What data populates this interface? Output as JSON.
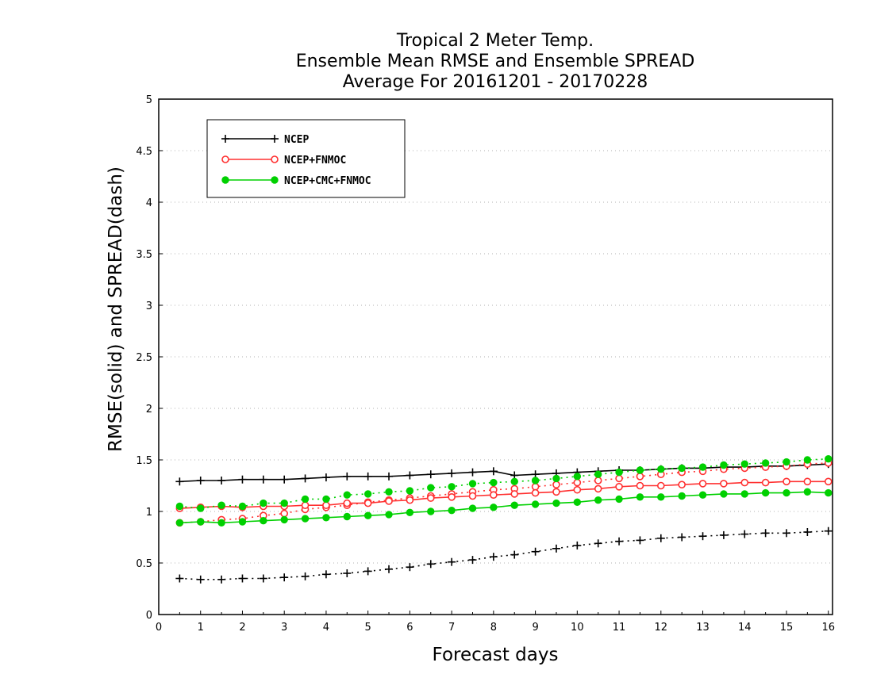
{
  "chart_data": {
    "type": "line",
    "title": [
      "Tropical 2 Meter Temp.",
      "Ensemble Mean RMSE and Ensemble SPREAD",
      "Average For 20161201 - 20170228"
    ],
    "xlabel": "Forecast days",
    "ylabel": "RMSE(solid) and SPREAD(dash)",
    "xlim": [
      0,
      16.1
    ],
    "ylim": [
      0,
      5
    ],
    "xticks": [
      "0",
      "1",
      "2",
      "3",
      "4",
      "5",
      "6",
      "7",
      "8",
      "9",
      "10",
      "11",
      "12",
      "13",
      "14",
      "15",
      "16"
    ],
    "yticks": [
      "0",
      "0.5",
      "1",
      "1.5",
      "2",
      "2.5",
      "3",
      "3.5",
      "4",
      "4.5",
      "5"
    ],
    "grid": "horizontal dotted",
    "legend_position": "top-left",
    "x": [
      0.5,
      1,
      1.5,
      2,
      2.5,
      3,
      3.5,
      4,
      4.5,
      5,
      5.5,
      6,
      6.5,
      7,
      7.5,
      8,
      8.5,
      9,
      9.5,
      10,
      10.5,
      11,
      11.5,
      12,
      12.5,
      13,
      13.5,
      14,
      14.5,
      15,
      15.5,
      16
    ],
    "series": [
      {
        "name": "NCEP",
        "color": "#000000",
        "marker": "plus",
        "rmse": [
          1.29,
          1.3,
          1.3,
          1.31,
          1.31,
          1.31,
          1.32,
          1.33,
          1.34,
          1.34,
          1.34,
          1.35,
          1.36,
          1.37,
          1.38,
          1.39,
          1.35,
          1.36,
          1.37,
          1.38,
          1.39,
          1.4,
          1.4,
          1.41,
          1.42,
          1.42,
          1.43,
          1.43,
          1.44,
          1.44,
          1.45,
          1.46
        ],
        "spread": [
          0.35,
          0.34,
          0.34,
          0.35,
          0.35,
          0.36,
          0.37,
          0.39,
          0.4,
          0.42,
          0.44,
          0.46,
          0.49,
          0.51,
          0.53,
          0.56,
          0.58,
          0.61,
          0.64,
          0.67,
          0.69,
          0.71,
          0.72,
          0.74,
          0.75,
          0.76,
          0.77,
          0.78,
          0.79,
          0.79,
          0.8,
          0.81
        ]
      },
      {
        "name": "NCEP+FNMOC",
        "color": "#ff3030",
        "marker": "open-circle",
        "rmse": [
          1.03,
          1.04,
          1.05,
          1.04,
          1.05,
          1.05,
          1.06,
          1.06,
          1.08,
          1.08,
          1.1,
          1.11,
          1.13,
          1.14,
          1.15,
          1.16,
          1.17,
          1.18,
          1.19,
          1.21,
          1.22,
          1.24,
          1.25,
          1.25,
          1.26,
          1.27,
          1.27,
          1.28,
          1.28,
          1.29,
          1.29,
          1.29
        ],
        "spread": [
          0.89,
          0.9,
          0.92,
          0.93,
          0.96,
          0.98,
          1.02,
          1.04,
          1.06,
          1.09,
          1.11,
          1.13,
          1.15,
          1.17,
          1.19,
          1.21,
          1.22,
          1.24,
          1.26,
          1.28,
          1.3,
          1.32,
          1.34,
          1.36,
          1.38,
          1.39,
          1.41,
          1.42,
          1.43,
          1.44,
          1.46,
          1.47
        ]
      },
      {
        "name": "NCEP+CMC+FNMOC",
        "color": "#00d000",
        "marker": "filled-circle",
        "rmse": [
          0.89,
          0.9,
          0.89,
          0.9,
          0.91,
          0.92,
          0.93,
          0.94,
          0.95,
          0.96,
          0.97,
          0.99,
          1.0,
          1.01,
          1.03,
          1.04,
          1.06,
          1.07,
          1.08,
          1.09,
          1.11,
          1.12,
          1.14,
          1.14,
          1.15,
          1.16,
          1.17,
          1.17,
          1.18,
          1.18,
          1.19,
          1.18
        ],
        "spread": [
          1.05,
          1.03,
          1.06,
          1.05,
          1.08,
          1.08,
          1.12,
          1.12,
          1.16,
          1.17,
          1.19,
          1.2,
          1.23,
          1.24,
          1.27,
          1.28,
          1.29,
          1.3,
          1.32,
          1.34,
          1.36,
          1.38,
          1.4,
          1.41,
          1.42,
          1.43,
          1.45,
          1.46,
          1.47,
          1.48,
          1.5,
          1.51
        ]
      }
    ]
  }
}
